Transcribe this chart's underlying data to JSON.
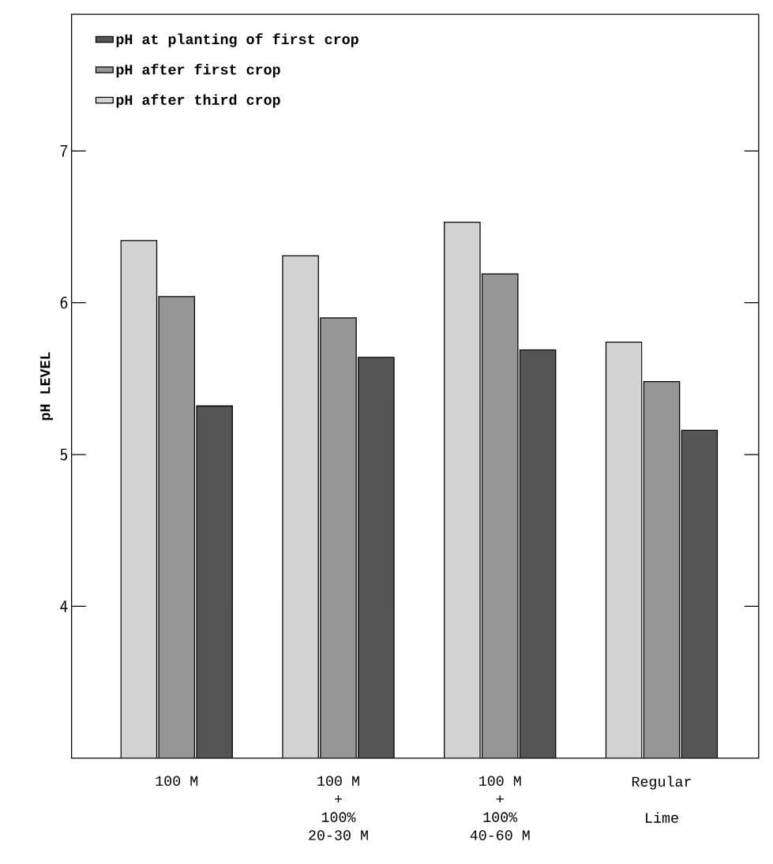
{
  "chart_data": {
    "type": "bar",
    "ylabel": "pH LEVEL",
    "categories": [
      "100 M",
      "100 M\n+\n100%\n20-30 M",
      "100 M\n+\n100%\n40-60 M",
      "Regular\n\nLime"
    ],
    "series": [
      {
        "name": "pH after third crop",
        "color": "#d2d2d2",
        "values": [
          6.41,
          6.31,
          6.53,
          5.74
        ]
      },
      {
        "name": "pH after first crop",
        "color": "#969696",
        "values": [
          6.04,
          5.9,
          6.19,
          5.48
        ]
      },
      {
        "name": "pH at planting of first crop",
        "color": "#555555",
        "values": [
          5.32,
          5.64,
          5.69,
          5.16
        ]
      }
    ],
    "ylim": [
      3.0,
      7.9
    ],
    "yticks": [
      4,
      5,
      6,
      7
    ],
    "grid": false,
    "legend": "top left"
  }
}
